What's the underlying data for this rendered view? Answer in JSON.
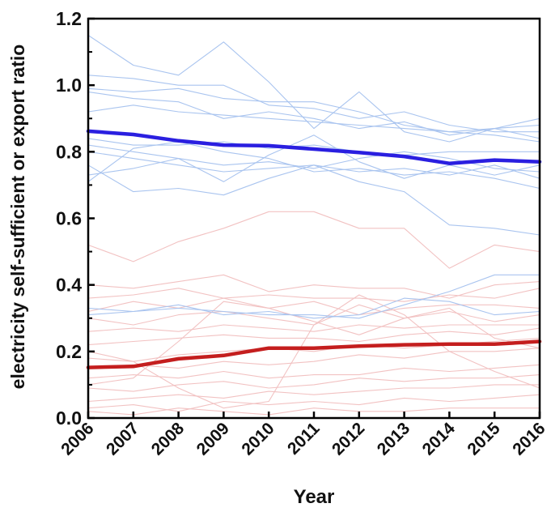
{
  "chart_data": {
    "type": "line",
    "title": "",
    "xlabel": "Year",
    "ylabel": "electricity self-sufficient or export ratio",
    "x": [
      2006,
      2007,
      2008,
      2009,
      2010,
      2011,
      2012,
      2013,
      2014,
      2015,
      2016
    ],
    "xlim": [
      2006,
      2016
    ],
    "ylim": [
      0,
      1.2
    ],
    "yticks": [
      0.0,
      0.2,
      0.4,
      0.6,
      0.8,
      1.0,
      1.2
    ],
    "grid": false,
    "legend": "none",
    "colors": {
      "blue_mean": "#2a1fe0",
      "red_mean": "#c41e1e",
      "blue_thin": "#a9c4ef",
      "red_thin": "#f2c2c2"
    },
    "series": [
      {
        "group": "blue",
        "bold": true,
        "values": [
          0.862,
          0.852,
          0.833,
          0.82,
          0.818,
          0.808,
          0.798,
          0.786,
          0.765,
          0.775,
          0.77
        ]
      },
      {
        "group": "red",
        "bold": true,
        "values": [
          0.152,
          0.155,
          0.178,
          0.188,
          0.21,
          0.21,
          0.216,
          0.22,
          0.222,
          0.222,
          0.23
        ]
      },
      {
        "group": "blue",
        "bold": false,
        "values": [
          1.15,
          1.06,
          1.03,
          1.13,
          1.01,
          0.87,
          0.98,
          0.86,
          0.83,
          0.87,
          0.88
        ]
      },
      {
        "group": "blue",
        "bold": false,
        "values": [
          1.03,
          1.02,
          1.0,
          1.0,
          0.94,
          0.93,
          0.9,
          0.92,
          0.88,
          0.86,
          0.86
        ]
      },
      {
        "group": "blue",
        "bold": false,
        "values": [
          0.99,
          0.98,
          0.99,
          0.96,
          0.95,
          0.95,
          0.92,
          0.88,
          0.86,
          0.87,
          0.9
        ]
      },
      {
        "group": "blue",
        "bold": false,
        "values": [
          0.98,
          0.96,
          0.95,
          0.9,
          0.92,
          0.9,
          0.87,
          0.89,
          0.85,
          0.87,
          0.84
        ]
      },
      {
        "group": "blue",
        "bold": false,
        "values": [
          0.92,
          0.94,
          0.92,
          0.91,
          0.9,
          0.89,
          0.88,
          0.87,
          0.86,
          0.85,
          0.83
        ]
      },
      {
        "group": "blue",
        "bold": false,
        "values": [
          0.84,
          0.82,
          0.82,
          0.83,
          0.81,
          0.82,
          0.8,
          0.79,
          0.8,
          0.8,
          0.8
        ]
      },
      {
        "group": "blue",
        "bold": false,
        "values": [
          0.82,
          0.8,
          0.78,
          0.76,
          0.77,
          0.75,
          0.78,
          0.8,
          0.78,
          0.75,
          0.74
        ]
      },
      {
        "group": "blue",
        "bold": false,
        "values": [
          0.8,
          0.78,
          0.76,
          0.74,
          0.75,
          0.76,
          0.74,
          0.75,
          0.73,
          0.76,
          0.72
        ]
      },
      {
        "group": "blue",
        "bold": false,
        "values": [
          0.73,
          0.75,
          0.78,
          0.71,
          0.79,
          0.85,
          0.77,
          0.72,
          0.76,
          0.73,
          0.76
        ]
      },
      {
        "group": "blue",
        "bold": false,
        "values": [
          0.71,
          0.81,
          0.83,
          0.8,
          0.78,
          0.74,
          0.75,
          0.73,
          0.74,
          0.72,
          0.69
        ]
      },
      {
        "group": "blue",
        "bold": false,
        "values": [
          0.76,
          0.68,
          0.69,
          0.67,
          0.72,
          0.76,
          0.71,
          0.68,
          0.58,
          0.57,
          0.55
        ]
      },
      {
        "group": "blue",
        "bold": false,
        "values": [
          0.33,
          0.32,
          0.33,
          0.32,
          0.31,
          0.31,
          0.3,
          0.34,
          0.38,
          0.43,
          0.43
        ]
      },
      {
        "group": "blue",
        "bold": false,
        "values": [
          0.31,
          0.32,
          0.34,
          0.31,
          0.32,
          0.3,
          0.31,
          0.36,
          0.35,
          0.31,
          0.32
        ]
      },
      {
        "group": "red",
        "bold": false,
        "values": [
          0.52,
          0.47,
          0.53,
          0.57,
          0.62,
          0.62,
          0.57,
          0.57,
          0.45,
          0.52,
          0.5
        ]
      },
      {
        "group": "red",
        "bold": false,
        "values": [
          0.4,
          0.39,
          0.41,
          0.43,
          0.38,
          0.4,
          0.39,
          0.39,
          0.36,
          0.4,
          0.41
        ]
      },
      {
        "group": "red",
        "bold": false,
        "values": [
          0.36,
          0.37,
          0.39,
          0.36,
          0.37,
          0.36,
          0.36,
          0.35,
          0.37,
          0.36,
          0.39
        ]
      },
      {
        "group": "red",
        "bold": false,
        "values": [
          0.32,
          0.35,
          0.33,
          0.36,
          0.33,
          0.35,
          0.31,
          0.33,
          0.34,
          0.34,
          0.33
        ]
      },
      {
        "group": "red",
        "bold": false,
        "values": [
          0.3,
          0.28,
          0.31,
          0.32,
          0.3,
          0.28,
          0.34,
          0.3,
          0.32,
          0.29,
          0.31
        ]
      },
      {
        "group": "red",
        "bold": false,
        "values": [
          0.26,
          0.27,
          0.26,
          0.28,
          0.27,
          0.26,
          0.28,
          0.27,
          0.28,
          0.28,
          0.28
        ]
      },
      {
        "group": "red",
        "bold": false,
        "values": [
          0.22,
          0.23,
          0.24,
          0.25,
          0.24,
          0.24,
          0.23,
          0.25,
          0.26,
          0.25,
          0.27
        ]
      },
      {
        "group": "red",
        "bold": false,
        "values": [
          0.18,
          0.17,
          0.19,
          0.2,
          0.21,
          0.2,
          0.22,
          0.21,
          0.22,
          0.23,
          0.24
        ]
      },
      {
        "group": "red",
        "bold": false,
        "values": [
          0.15,
          0.16,
          0.15,
          0.17,
          0.16,
          0.17,
          0.19,
          0.18,
          0.2,
          0.2,
          0.21
        ]
      },
      {
        "group": "red",
        "bold": false,
        "values": [
          0.12,
          0.13,
          0.12,
          0.14,
          0.12,
          0.13,
          0.13,
          0.15,
          0.14,
          0.15,
          0.16
        ]
      },
      {
        "group": "red",
        "bold": false,
        "values": [
          0.09,
          0.08,
          0.1,
          0.11,
          0.09,
          0.1,
          0.12,
          0.11,
          0.12,
          0.12,
          0.13
        ]
      },
      {
        "group": "red",
        "bold": false,
        "values": [
          0.05,
          0.06,
          0.07,
          0.06,
          0.08,
          0.07,
          0.08,
          0.09,
          0.09,
          0.1,
          0.1
        ]
      },
      {
        "group": "red",
        "bold": false,
        "values": [
          0.03,
          0.04,
          0.02,
          0.05,
          0.04,
          0.05,
          0.04,
          0.06,
          0.05,
          0.06,
          0.07
        ]
      },
      {
        "group": "red",
        "bold": false,
        "values": [
          0.02,
          0.01,
          0.03,
          0.02,
          0.01,
          0.03,
          0.02,
          0.02,
          0.03,
          0.03,
          0.03
        ]
      },
      {
        "group": "red",
        "bold": false,
        "values": [
          0.2,
          0.17,
          0.09,
          0.03,
          0.05,
          0.28,
          0.37,
          0.31,
          0.2,
          0.14,
          0.09
        ]
      },
      {
        "group": "red",
        "bold": false,
        "values": [
          0.1,
          0.12,
          0.23,
          0.35,
          0.33,
          0.29,
          0.25,
          0.3,
          0.33,
          0.24,
          0.21
        ]
      }
    ]
  }
}
